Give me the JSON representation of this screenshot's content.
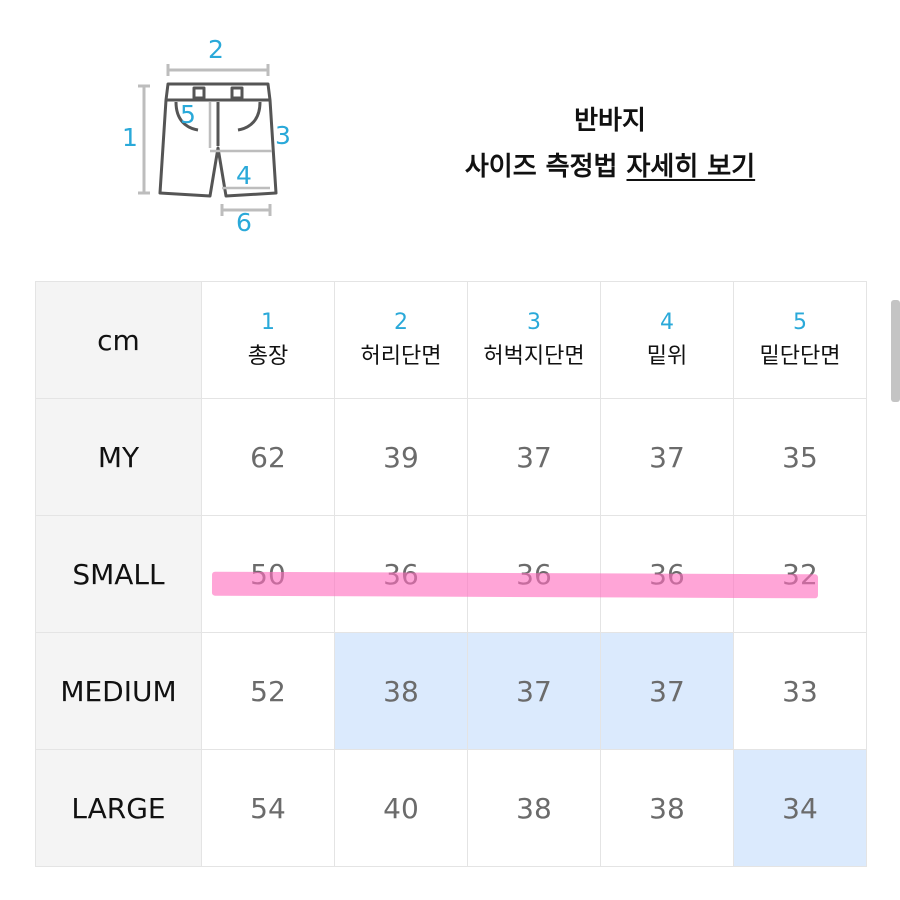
{
  "diagram": {
    "icon": "shorts-measurement-icon",
    "labels": [
      "1",
      "2",
      "3",
      "4",
      "5",
      "6"
    ],
    "accent_color": "#2aa9d9"
  },
  "heading": {
    "line1": "반바지",
    "line2_prefix": "사이즈 측정법 ",
    "line2_link": "자세히 보기"
  },
  "table": {
    "unit": "cm",
    "columns": [
      {
        "num": "1",
        "label": "총장"
      },
      {
        "num": "2",
        "label": "허리단면"
      },
      {
        "num": "3",
        "label": "허벅지단면"
      },
      {
        "num": "4",
        "label": "밑위"
      },
      {
        "num": "5",
        "label": "밑단단면"
      }
    ],
    "rows": [
      {
        "size": "MY",
        "values": [
          "62",
          "39",
          "37",
          "37",
          "35"
        ]
      },
      {
        "size": "SMALL",
        "values": [
          "50",
          "36",
          "36",
          "36",
          "32"
        ]
      },
      {
        "size": "MEDIUM",
        "values": [
          "52",
          "38",
          "37",
          "37",
          "33"
        ]
      },
      {
        "size": "LARGE",
        "values": [
          "54",
          "40",
          "38",
          "38",
          "34"
        ]
      }
    ],
    "highlight_color": "#dbeafd",
    "marker_color": "#ff6ebe"
  }
}
